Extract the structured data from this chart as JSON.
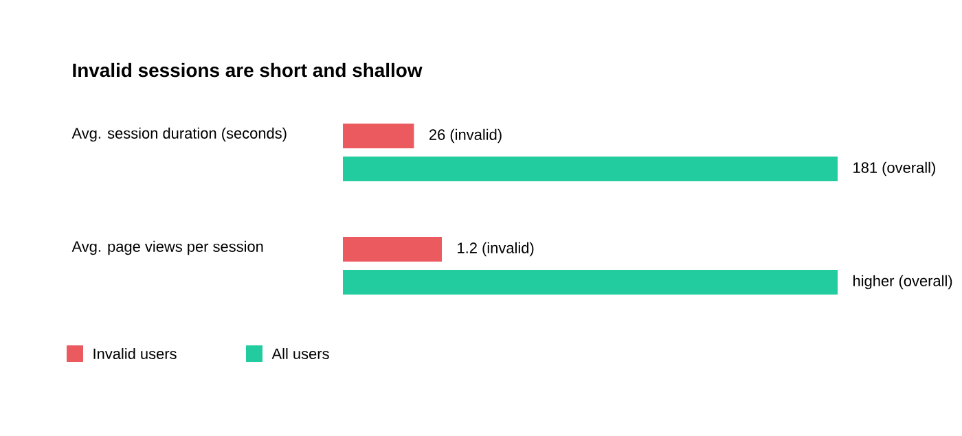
{
  "chart_data": [
    {
      "type": "bar",
      "orientation": "horizontal",
      "title": "Invalid sessions are short and shallow",
      "categories": [
        "Avg. session duration (seconds)"
      ],
      "series": [
        {
          "color": "#eb5a5f",
          "values": [
            26
          ],
          "value_labels": [
            "26 (invalid)"
          ]
        },
        {
          "color": "#22cc9e",
          "values": [
            181
          ],
          "value_labels": [
            "181 (overall)"
          ]
        }
      ]
    },
    {
      "type": "bar",
      "orientation": "horizontal",
      "categories": [
        "Avg. page views per session"
      ],
      "series": [
        {
          "name": "Invalid users",
          "color": "#eb5a5f",
          "values": [
            1.2
          ],
          "value_labels": [
            "1.2 (invalid)"
          ]
        },
        {
          "name": "All users",
          "color": "#22cc9e",
          "values": [
            6.0
          ],
          "value_labels": [
            "higher (overall)"
          ]
        }
      ],
      "legend": "bottom left"
    }
  ]
}
